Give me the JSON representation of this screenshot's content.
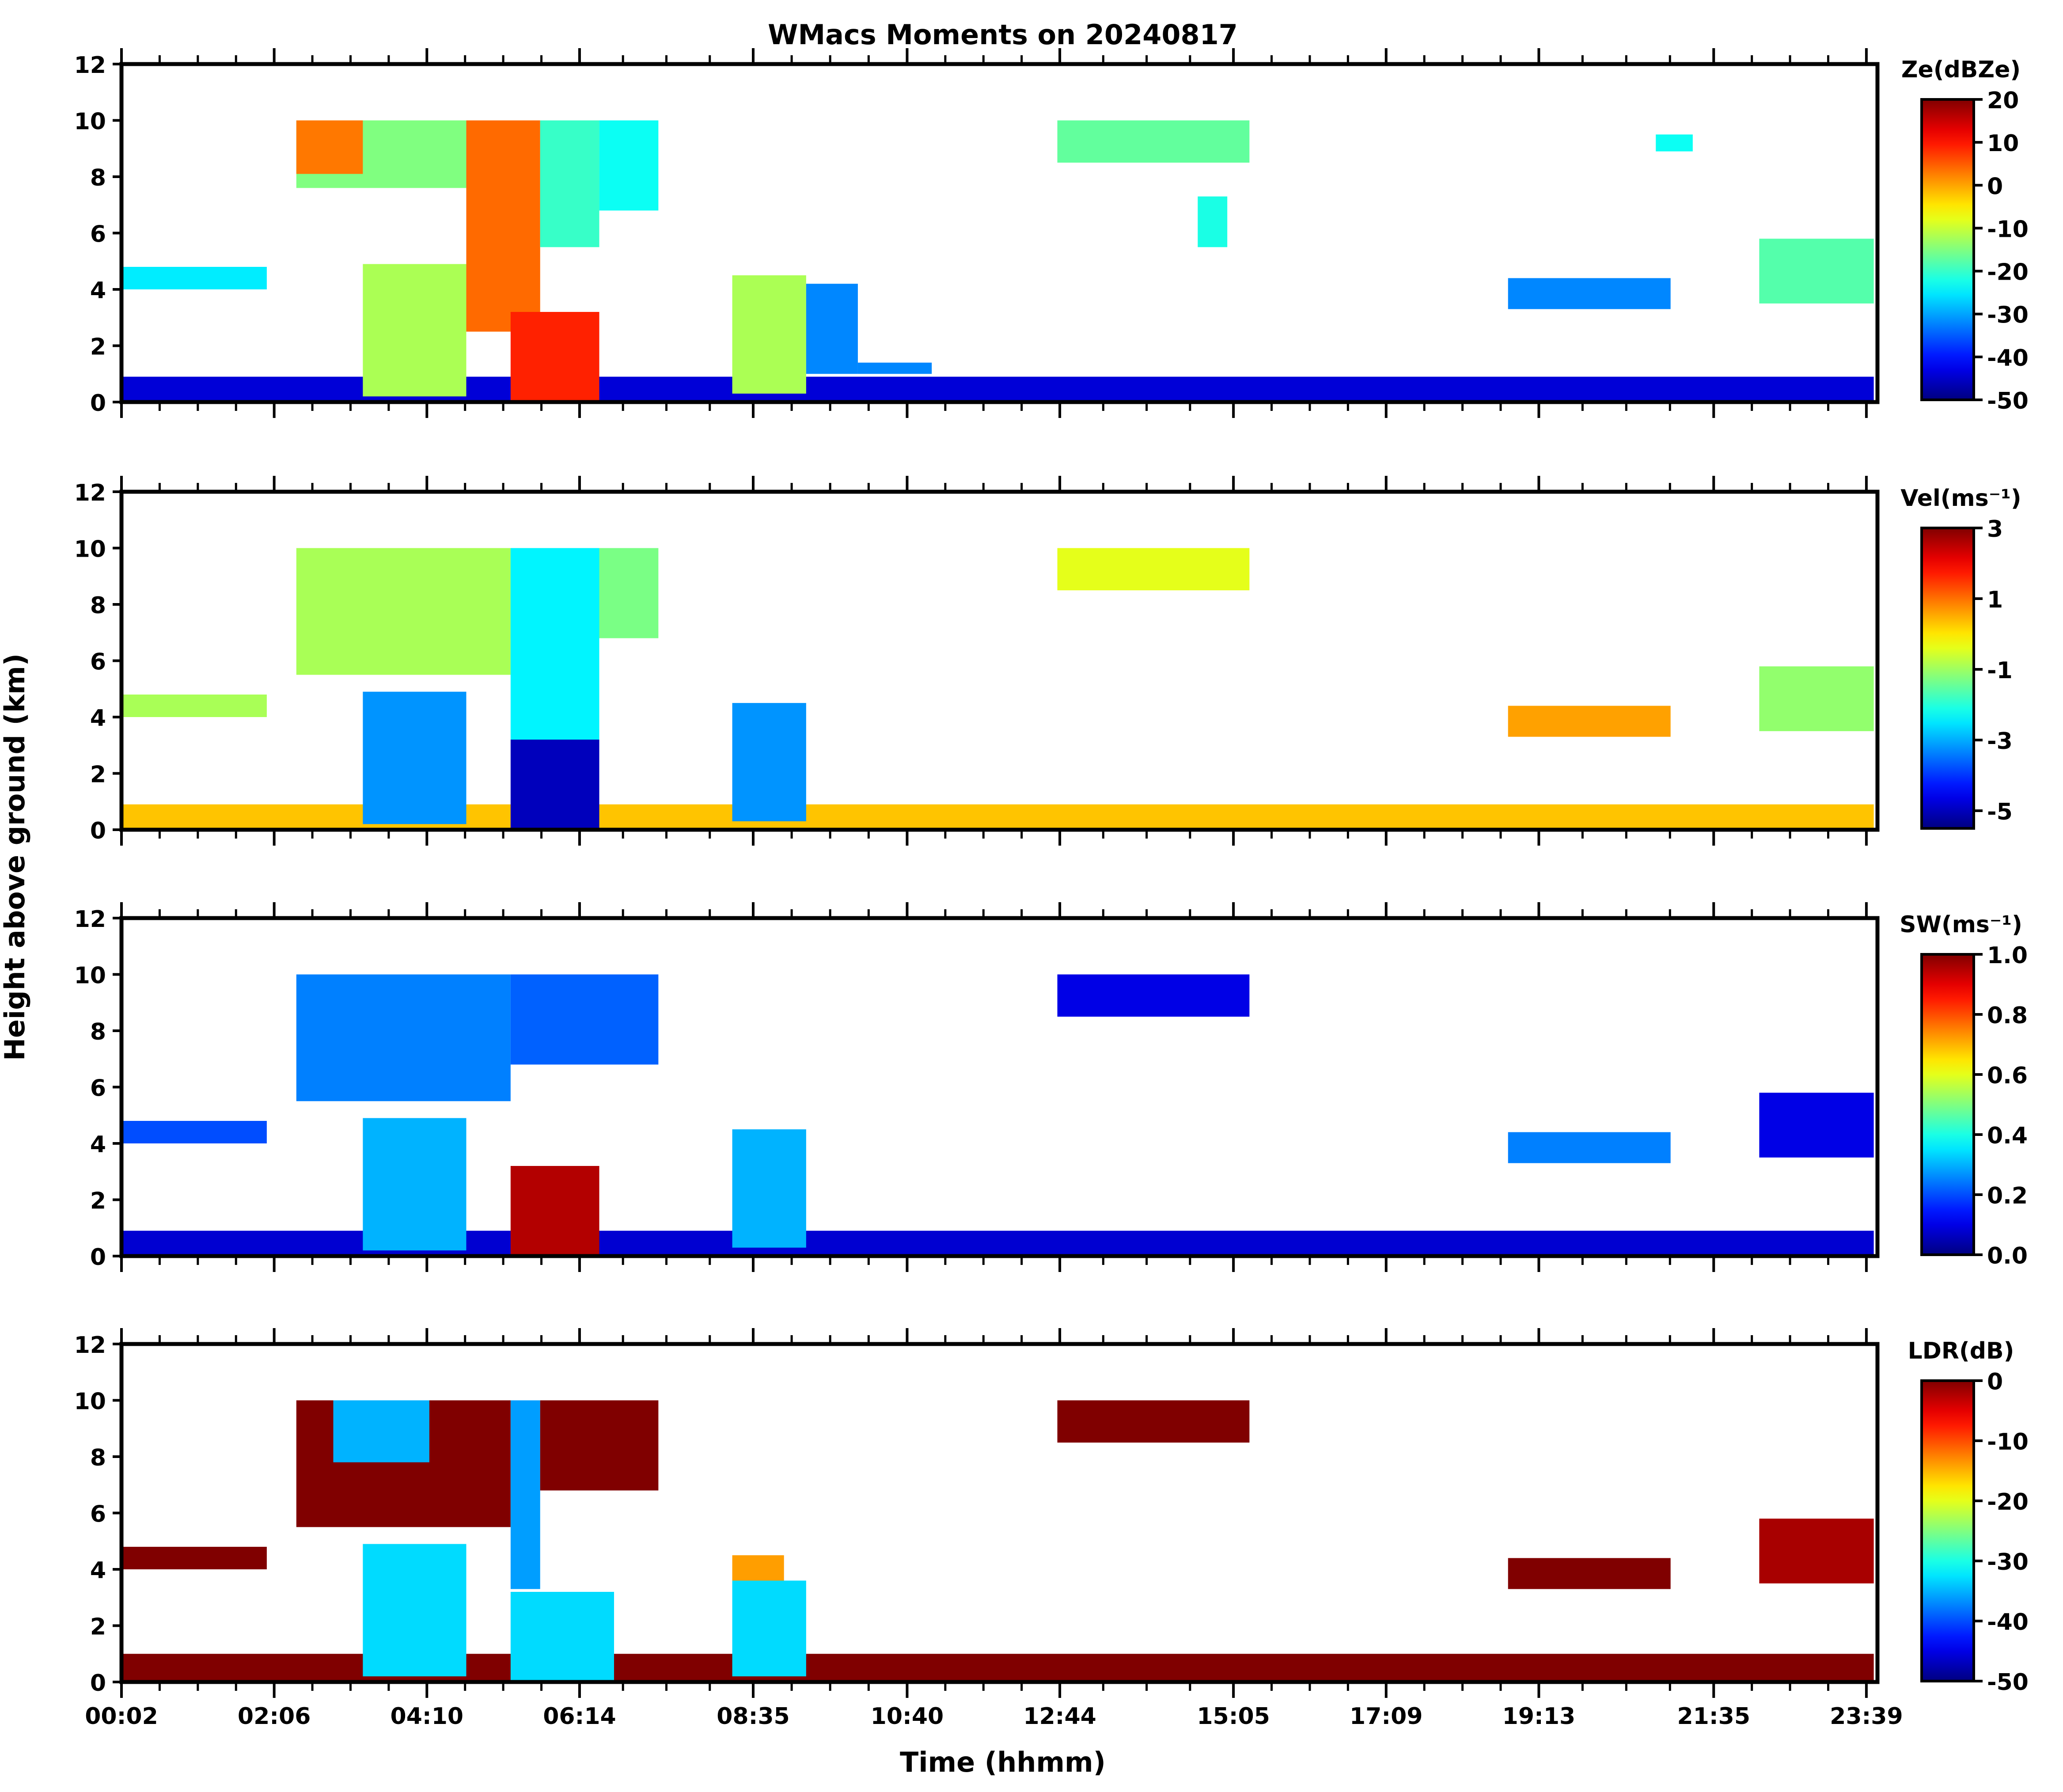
{
  "figure": {
    "title": "WMacs Moments on 20240817",
    "ylabel": "Height above ground (km)",
    "xlabel": "Time (hhmm)"
  },
  "chart_data": {
    "type": "heatmap",
    "shared_x": {
      "range_hours": [
        0.0333,
        23.8
      ],
      "tick_labels": [
        "00:02",
        "02:06",
        "04:10",
        "06:14",
        "08:35",
        "10:40",
        "12:44",
        "15:05",
        "17:09",
        "19:13",
        "21:35",
        "23:39"
      ],
      "tick_hours": [
        0.0333,
        2.1,
        4.1667,
        6.2333,
        8.5833,
        10.6667,
        12.7333,
        15.0833,
        17.15,
        19.2167,
        21.5833,
        23.65
      ]
    },
    "panels": [
      {
        "id": "ze",
        "colorbar_label": "Ze(dBZe)",
        "ylim": [
          0,
          12
        ],
        "y_ticks": [
          "0",
          "2",
          "4",
          "6",
          "8",
          "10",
          "12"
        ],
        "colorbar_range": [
          -50,
          20
        ],
        "colorbar_ticks": [
          "20",
          "10",
          "0",
          "-10",
          "-20",
          "-30",
          "-40",
          "-50"
        ],
        "colorbar_tick_values": [
          20,
          10,
          0,
          -10,
          -20,
          -30,
          -40,
          -50
        ],
        "colormap": "jet",
        "regions": [
          {
            "t0": 0.05,
            "t1": 23.75,
            "h0": 0.0,
            "h1": 0.9,
            "v": -44
          },
          {
            "t0": 2.4,
            "t1": 4.7,
            "h0": 7.6,
            "h1": 10.0,
            "v": -15
          },
          {
            "t0": 2.4,
            "t1": 3.3,
            "h0": 8.1,
            "h1": 10.0,
            "v": 3
          },
          {
            "t0": 4.7,
            "t1": 5.7,
            "h0": 2.5,
            "h1": 10.0,
            "v": 4
          },
          {
            "t0": 5.7,
            "t1": 6.5,
            "h0": 5.5,
            "h1": 10.0,
            "v": -20
          },
          {
            "t0": 6.5,
            "t1": 7.3,
            "h0": 6.8,
            "h1": 10.0,
            "v": -23
          },
          {
            "t0": 5.3,
            "t1": 6.5,
            "h0": 0.0,
            "h1": 3.2,
            "v": 9
          },
          {
            "t0": 3.3,
            "t1": 4.7,
            "h0": 0.2,
            "h1": 4.9,
            "v": -12
          },
          {
            "t0": 8.3,
            "t1": 9.3,
            "h0": 0.3,
            "h1": 4.5,
            "v": -12
          },
          {
            "t0": 9.3,
            "t1": 10.0,
            "h0": 1.0,
            "h1": 4.2,
            "v": -32
          },
          {
            "t0": 0.05,
            "t1": 2.0,
            "h0": 4.0,
            "h1": 4.8,
            "v": -25
          },
          {
            "t0": 12.7,
            "t1": 15.3,
            "h0": 8.5,
            "h1": 10.0,
            "v": -17
          },
          {
            "t0": 14.6,
            "t1": 15.0,
            "h0": 5.5,
            "h1": 7.3,
            "v": -22
          },
          {
            "t0": 20.8,
            "t1": 21.3,
            "h0": 8.9,
            "h1": 9.5,
            "v": -23
          },
          {
            "t0": 22.2,
            "t1": 23.75,
            "h0": 3.5,
            "h1": 5.8,
            "v": -18
          },
          {
            "t0": 18.8,
            "t1": 21.0,
            "h0": 3.3,
            "h1": 4.4,
            "v": -32
          },
          {
            "t0": 10.0,
            "t1": 11.0,
            "h0": 1.0,
            "h1": 1.4,
            "v": -32
          }
        ]
      },
      {
        "id": "vel",
        "colorbar_label": "Vel(ms⁻¹)",
        "ylim": [
          0,
          12
        ],
        "y_ticks": [
          "0",
          "2",
          "4",
          "6",
          "8",
          "10",
          "12"
        ],
        "colorbar_range": [
          -5.5,
          3
        ],
        "colorbar_ticks": [
          "3",
          "1",
          "-1",
          "-3",
          "-5"
        ],
        "colorbar_tick_values": [
          3,
          1,
          -1,
          -3,
          -5
        ],
        "colormap": "jet",
        "regions": [
          {
            "t0": 0.05,
            "t1": 23.75,
            "h0": 0.0,
            "h1": 0.9,
            "v": 0.3
          },
          {
            "t0": 2.4,
            "t1": 5.3,
            "h0": 5.5,
            "h1": 10.0,
            "v": -0.9
          },
          {
            "t0": 5.3,
            "t1": 7.3,
            "h0": 6.8,
            "h1": 10.0,
            "v": -1.3
          },
          {
            "t0": 5.3,
            "t1": 6.5,
            "h0": 0.0,
            "h1": 3.2,
            "v": -5.0
          },
          {
            "t0": 5.3,
            "t1": 6.5,
            "h0": 3.2,
            "h1": 10.0,
            "v": -2.4
          },
          {
            "t0": 3.3,
            "t1": 4.7,
            "h0": 0.2,
            "h1": 4.9,
            "v": -3.2
          },
          {
            "t0": 8.3,
            "t1": 9.3,
            "h0": 0.3,
            "h1": 4.5,
            "v": -3.2
          },
          {
            "t0": 0.05,
            "t1": 2.0,
            "h0": 4.0,
            "h1": 4.8,
            "v": -0.9
          },
          {
            "t0": 12.7,
            "t1": 15.3,
            "h0": 8.5,
            "h1": 10.0,
            "v": -0.4
          },
          {
            "t0": 22.2,
            "t1": 23.75,
            "h0": 3.5,
            "h1": 5.8,
            "v": -1.1
          },
          {
            "t0": 18.8,
            "t1": 21.0,
            "h0": 3.3,
            "h1": 4.4,
            "v": 0.6
          }
        ]
      },
      {
        "id": "sw",
        "colorbar_label": "SW(ms⁻¹)",
        "ylim": [
          0,
          12
        ],
        "y_ticks": [
          "0",
          "2",
          "4",
          "6",
          "8",
          "10",
          "12"
        ],
        "colorbar_range": [
          0.0,
          1.0
        ],
        "colorbar_ticks": [
          "1.0",
          "0.8",
          "0.6",
          "0.4",
          "0.2",
          "0.0"
        ],
        "colorbar_tick_values": [
          1.0,
          0.8,
          0.6,
          0.4,
          0.2,
          0.0
        ],
        "colormap": "jet",
        "regions": [
          {
            "t0": 0.05,
            "t1": 23.75,
            "h0": 0.0,
            "h1": 0.9,
            "v": 0.08
          },
          {
            "t0": 2.4,
            "t1": 5.3,
            "h0": 5.5,
            "h1": 10.0,
            "v": 0.25
          },
          {
            "t0": 5.3,
            "t1": 7.3,
            "h0": 6.8,
            "h1": 10.0,
            "v": 0.22
          },
          {
            "t0": 5.3,
            "t1": 6.5,
            "h0": 0.0,
            "h1": 3.2,
            "v": 0.95
          },
          {
            "t0": 3.3,
            "t1": 4.7,
            "h0": 0.2,
            "h1": 4.9,
            "v": 0.3
          },
          {
            "t0": 8.3,
            "t1": 9.3,
            "h0": 0.3,
            "h1": 4.5,
            "v": 0.3
          },
          {
            "t0": 0.05,
            "t1": 2.0,
            "h0": 4.0,
            "h1": 4.8,
            "v": 0.2
          },
          {
            "t0": 12.7,
            "t1": 15.3,
            "h0": 8.5,
            "h1": 10.0,
            "v": 0.1
          },
          {
            "t0": 22.2,
            "t1": 23.75,
            "h0": 3.5,
            "h1": 5.8,
            "v": 0.1
          },
          {
            "t0": 18.8,
            "t1": 21.0,
            "h0": 3.3,
            "h1": 4.4,
            "v": 0.25
          }
        ]
      },
      {
        "id": "ldr",
        "colorbar_label": "LDR(dB)",
        "ylim": [
          0,
          12
        ],
        "y_ticks": [
          "0",
          "2",
          "4",
          "6",
          "8",
          "10",
          "12"
        ],
        "colorbar_range": [
          -50,
          0
        ],
        "colorbar_ticks": [
          "0",
          "-10",
          "-20",
          "-30",
          "-40",
          "-50"
        ],
        "colorbar_tick_values": [
          0,
          -10,
          -20,
          -30,
          -40,
          -50
        ],
        "colormap": "jet",
        "regions": [
          {
            "t0": 0.05,
            "t1": 23.75,
            "h0": 0.0,
            "h1": 1.0,
            "v": 0
          },
          {
            "t0": 2.4,
            "t1": 5.3,
            "h0": 5.5,
            "h1": 10.0,
            "v": 0
          },
          {
            "t0": 2.9,
            "t1": 4.2,
            "h0": 7.8,
            "h1": 10.0,
            "v": -35
          },
          {
            "t0": 5.3,
            "t1": 5.7,
            "h0": 3.3,
            "h1": 10.0,
            "v": -36
          },
          {
            "t0": 5.7,
            "t1": 7.3,
            "h0": 6.8,
            "h1": 10.0,
            "v": 0
          },
          {
            "t0": 5.3,
            "t1": 6.7,
            "h0": 0.0,
            "h1": 3.2,
            "v": -33
          },
          {
            "t0": 3.3,
            "t1": 4.7,
            "h0": 0.2,
            "h1": 4.9,
            "v": -33
          },
          {
            "t0": 8.3,
            "t1": 9.3,
            "h0": 0.2,
            "h1": 3.6,
            "v": -33
          },
          {
            "t0": 8.3,
            "t1": 9.0,
            "h0": 3.6,
            "h1": 4.5,
            "v": -14
          },
          {
            "t0": 0.05,
            "t1": 2.0,
            "h0": 4.0,
            "h1": 4.8,
            "v": 0
          },
          {
            "t0": 12.7,
            "t1": 15.3,
            "h0": 8.5,
            "h1": 10.0,
            "v": 0
          },
          {
            "t0": 22.2,
            "t1": 23.75,
            "h0": 3.5,
            "h1": 5.8,
            "v": -2
          },
          {
            "t0": 18.8,
            "t1": 21.0,
            "h0": 3.3,
            "h1": 4.4,
            "v": 0
          }
        ]
      }
    ]
  }
}
